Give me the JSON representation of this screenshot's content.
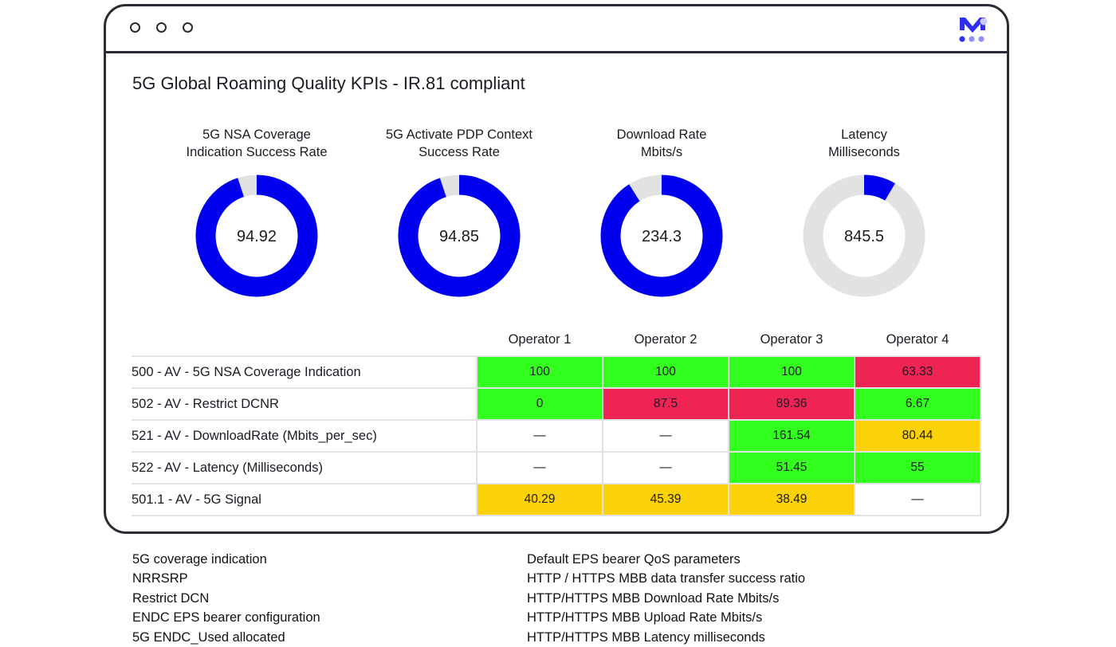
{
  "page_title": "5G Global Roaming Quality KPIs - IR.81 compliant",
  "gauges": [
    {
      "label_line1": "5G NSA Coverage",
      "label_line2": "Indication Success Rate",
      "value": "94.92",
      "fill_fraction": 0.9492
    },
    {
      "label_line1": "5G Activate PDP Context",
      "label_line2": "Success Rate",
      "value": "94.85",
      "fill_fraction": 0.9485
    },
    {
      "label_line1": "Download Rate",
      "label_line2": "Mbits/s",
      "value": "234.3",
      "fill_fraction": 0.91
    },
    {
      "label_line1": "Latency",
      "label_line2": "Milliseconds",
      "value": "845.5",
      "fill_fraction": 0.085
    }
  ],
  "colors": {
    "accent": "#0000ee",
    "track": "#e2e2e2",
    "good": "#33ff1f",
    "bad": "#ef2454",
    "warn": "#fbd107"
  },
  "table": {
    "operators": [
      "Operator 1",
      "Operator 2",
      "Operator 3",
      "Operator 4"
    ],
    "rows": [
      {
        "metric": "500 - AV - 5G NSA Coverage Indication",
        "cells": [
          {
            "v": "100",
            "s": "good"
          },
          {
            "v": "100",
            "s": "good"
          },
          {
            "v": "100",
            "s": "good"
          },
          {
            "v": "63.33",
            "s": "bad"
          }
        ]
      },
      {
        "metric": "502 - AV - Restrict DCNR",
        "cells": [
          {
            "v": "0",
            "s": "good"
          },
          {
            "v": "87.5",
            "s": "bad"
          },
          {
            "v": "89.36",
            "s": "bad"
          },
          {
            "v": "6.67",
            "s": "good"
          }
        ]
      },
      {
        "metric": "521 - AV - DownloadRate (Mbits_per_sec)",
        "cells": [
          {
            "v": "—",
            "s": "none"
          },
          {
            "v": "—",
            "s": "none"
          },
          {
            "v": "161.54",
            "s": "good"
          },
          {
            "v": "80.44",
            "s": "warn"
          }
        ]
      },
      {
        "metric": "522 - AV - Latency (Milliseconds)",
        "cells": [
          {
            "v": "—",
            "s": "none"
          },
          {
            "v": "—",
            "s": "none"
          },
          {
            "v": "51.45",
            "s": "good"
          },
          {
            "v": "55",
            "s": "good"
          }
        ]
      },
      {
        "metric": "501.1 - AV - 5G Signal",
        "cells": [
          {
            "v": "40.29",
            "s": "warn"
          },
          {
            "v": "45.39",
            "s": "warn"
          },
          {
            "v": "38.49",
            "s": "warn"
          },
          {
            "v": "—",
            "s": "none"
          }
        ]
      }
    ]
  },
  "notes_left": [
    "5G coverage indication",
    "NRRSRP",
    "Restrict DCN",
    "ENDC EPS bearer configuration",
    "5G ENDC_Used allocated"
  ],
  "notes_right": [
    "Default EPS bearer QoS parameters",
    "HTTP / HTTPS MBB data transfer success ratio",
    "HTTP/HTTPS MBB Download Rate Mbits/s",
    "HTTP/HTTPS MBB Upload Rate Mbits/s",
    "HTTP/HTTPS MBB Latency milliseconds"
  ]
}
